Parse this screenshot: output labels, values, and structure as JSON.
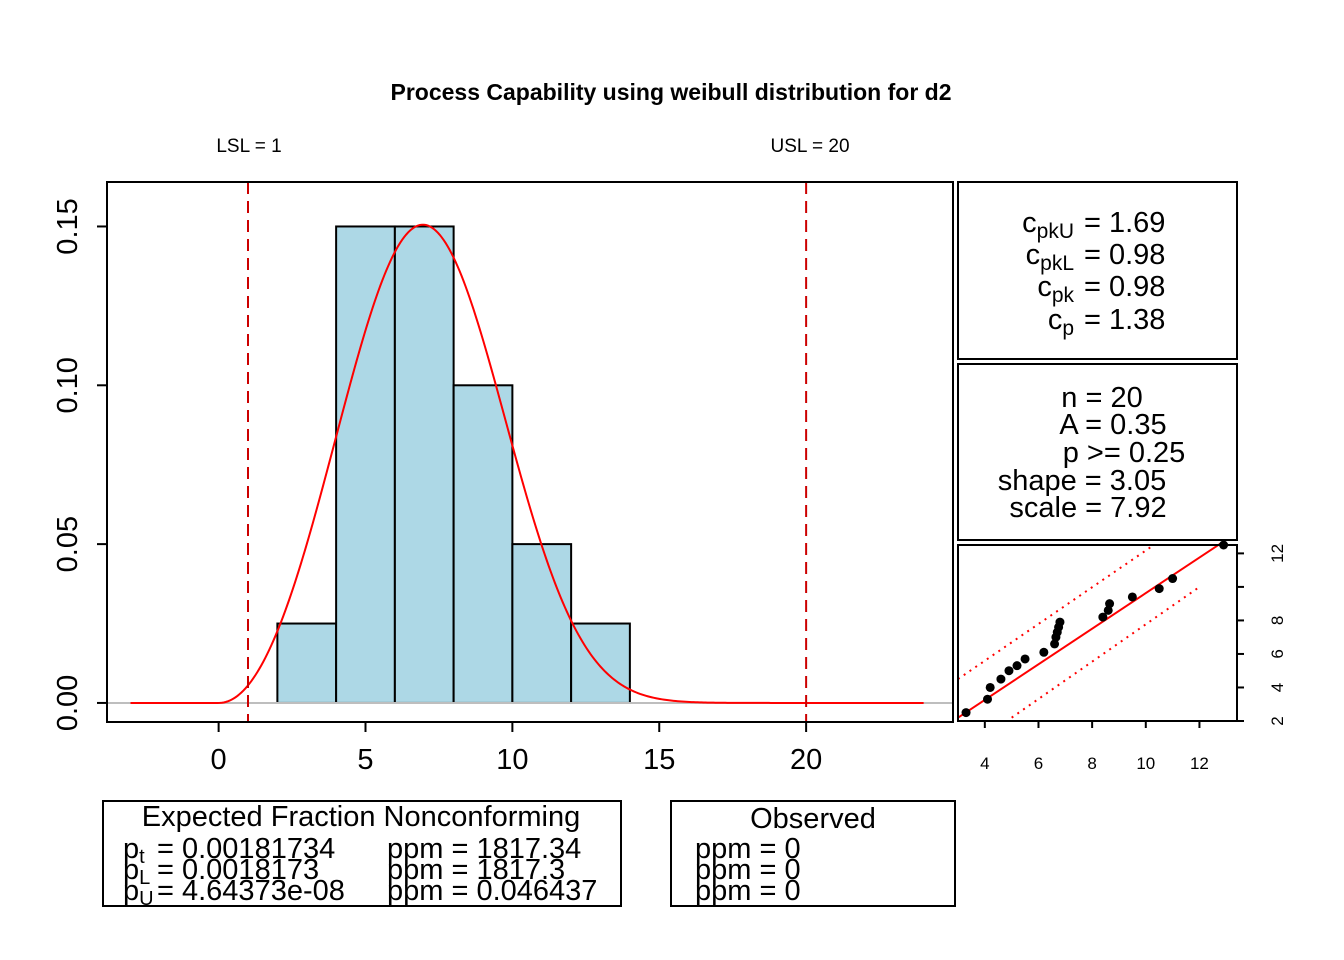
{
  "title": "Process Capability using weibull distribution for d2",
  "spec": {
    "lsl_label": "LSL = 1",
    "usl_label": "USL = 20",
    "lsl": 1,
    "usl": 20
  },
  "colors": {
    "bar_fill": "#ADD8E6",
    "curve": "#FF0000",
    "spec_line": "#CC0000",
    "baseline": "#BEBEBE",
    "points": "#000000"
  },
  "chart_data": [
    {
      "type": "bar",
      "name": "histogram",
      "bins": [
        {
          "from": 2,
          "to": 4,
          "density": 0.025
        },
        {
          "from": 4,
          "to": 6,
          "density": 0.15
        },
        {
          "from": 6,
          "to": 8,
          "density": 0.15
        },
        {
          "from": 8,
          "to": 10,
          "density": 0.1
        },
        {
          "from": 10,
          "to": 12,
          "density": 0.05
        },
        {
          "from": 12,
          "to": 14,
          "density": 0.025
        }
      ],
      "density_curve": {
        "distribution": "weibull",
        "shape": 3.05,
        "scale": 7.92,
        "x_from": -3,
        "x_to": 24
      },
      "xlim": [
        -3.8,
        25
      ],
      "ylim": [
        -0.006,
        0.164
      ],
      "x_ticks": [
        "0",
        "5",
        "10",
        "15",
        "20"
      ],
      "x_tick_values": [
        0,
        5,
        10,
        15,
        20
      ],
      "y_ticks": [
        "0.00",
        "0.05",
        "0.10",
        "0.15"
      ],
      "y_tick_values": [
        0,
        0.05,
        0.1,
        0.15
      ]
    },
    {
      "type": "scatter",
      "name": "probability plot",
      "points": [
        [
          3.3,
          2.5
        ],
        [
          4.1,
          3.3
        ],
        [
          4.2,
          4.0
        ],
        [
          4.6,
          4.5
        ],
        [
          4.9,
          5.0
        ],
        [
          5.2,
          5.3
        ],
        [
          5.5,
          5.7
        ],
        [
          6.2,
          6.1
        ],
        [
          6.6,
          6.6
        ],
        [
          6.65,
          7.0
        ],
        [
          6.7,
          7.3
        ],
        [
          6.75,
          7.6
        ],
        [
          6.8,
          7.9
        ],
        [
          8.4,
          8.2
        ],
        [
          8.6,
          8.6
        ],
        [
          8.65,
          9.0
        ],
        [
          9.5,
          9.4
        ],
        [
          10.5,
          9.9
        ],
        [
          11.0,
          10.5
        ],
        [
          12.9,
          12.5
        ]
      ],
      "fit_line": [
        [
          3.0,
          2.2
        ],
        [
          12.8,
          12.6
        ]
      ],
      "band_upper": [
        [
          3.0,
          4.5
        ],
        [
          10.3,
          12.5
        ]
      ],
      "band_lower": [
        [
          5.0,
          2.2
        ],
        [
          12.0,
          10.0
        ]
      ],
      "xlim": [
        3.0,
        13.4
      ],
      "ylim": [
        2.0,
        12.5
      ],
      "x_ticks": [
        "4",
        "6",
        "8",
        "10",
        "12"
      ],
      "x_tick_values": [
        4,
        6,
        8,
        10,
        12
      ],
      "y_ticks": [
        "2",
        "4",
        "6",
        "8",
        "12"
      ],
      "y_tick_values": [
        2,
        4,
        6,
        8,
        12
      ],
      "y_minor_tick_values": [
        10
      ]
    }
  ],
  "capability": {
    "cpkU_sub": "pkU",
    "cpkU_value": "= 1.69",
    "cpkL_sub": "pkL",
    "cpkL_value": "= 0.98",
    "cpk_sub": "pk",
    "cpk_value": "= 0.98",
    "cp_sub": "p",
    "cp_value": "= 1.38",
    "letter": "c"
  },
  "stats": {
    "n": "n = 20",
    "A": "A = 0.35",
    "p": "p >= 0.25",
    "shape": "shape = 3.05",
    "scale": "scale = 7.92"
  },
  "expected": {
    "title": "Expected Fraction Nonconforming",
    "p_letter": "p",
    "pt_sub": "t",
    "pt_value": "= 0.00181734",
    "pL_sub": "L",
    "pL_value": "= 0.0018173",
    "pU_sub": "U",
    "pU_value": "= 4.64373e-08",
    "ppm_t": "ppm = 1817.34",
    "ppm_L": "ppm = 1817.3",
    "ppm_U": "ppm = 0.046437"
  },
  "observed": {
    "title": "Observed",
    "ppm_t": "ppm = 0",
    "ppm_L": "ppm = 0",
    "ppm_U": "ppm = 0"
  }
}
